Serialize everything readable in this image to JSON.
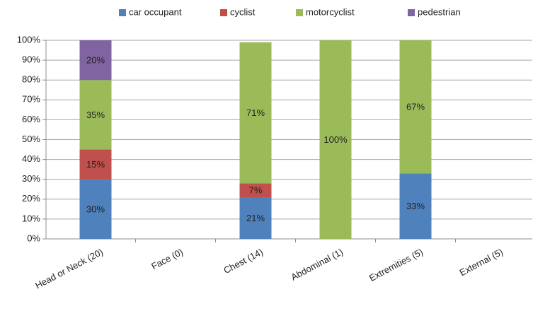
{
  "chart_data": {
    "type": "stacked_bar",
    "categories": [
      "Head or Neck (20)",
      "Face (0)",
      "Chest (14)",
      "Abdominal (1)",
      "Extremities (5)",
      "External (5)"
    ],
    "series": [
      {
        "name": "car occupant",
        "color": "#4f81bd",
        "values": [
          30,
          0,
          21,
          0,
          33,
          0
        ],
        "value_labels": [
          "30%",
          null,
          "21%",
          null,
          "33%",
          null
        ]
      },
      {
        "name": "cyclist",
        "color": "#c0504d",
        "values": [
          15,
          0,
          7,
          0,
          0,
          0
        ],
        "value_labels": [
          "15%",
          null,
          "7%",
          null,
          null,
          null
        ]
      },
      {
        "name": "motorcyclist",
        "color": "#9bbb59",
        "values": [
          35,
          0,
          71,
          100,
          67,
          0
        ],
        "value_labels": [
          "35%",
          null,
          "71%",
          "100%",
          "67%",
          null
        ]
      },
      {
        "name": "pedestrian",
        "color": "#8064a2",
        "values": [
          20,
          0,
          0,
          0,
          0,
          0
        ],
        "value_labels": [
          "20%",
          null,
          null,
          null,
          null,
          null
        ]
      }
    ],
    "ylim": [
      0,
      100
    ],
    "yticks": [
      {
        "value": 0,
        "label": "0%"
      },
      {
        "value": 10,
        "label": "10%"
      },
      {
        "value": 20,
        "label": "20%"
      },
      {
        "value": 30,
        "label": "30%"
      },
      {
        "value": 40,
        "label": "40%"
      },
      {
        "value": 50,
        "label": "50%"
      },
      {
        "value": 60,
        "label": "60%"
      },
      {
        "value": 70,
        "label": "70%"
      },
      {
        "value": 80,
        "label": "80%"
      },
      {
        "value": 90,
        "label": "90%"
      },
      {
        "value": 100,
        "label": "100%"
      }
    ],
    "grid": true,
    "legend": "top"
  }
}
